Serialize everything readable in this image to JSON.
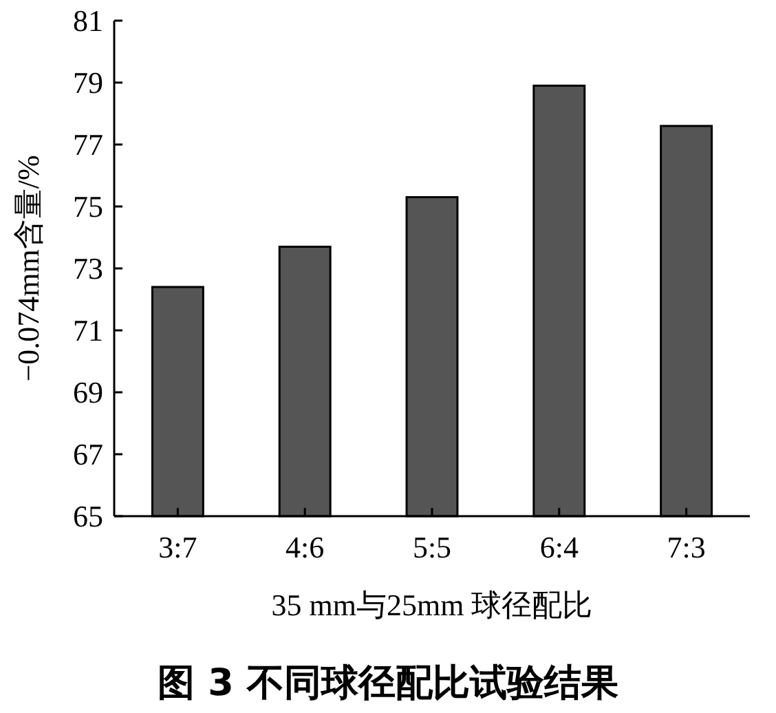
{
  "chart_data": {
    "type": "bar",
    "title": "图 3  不同球径配比试验结果",
    "xlabel": "35 mm与25mm 球径配比",
    "ylabel": "−0.074mm含量/%",
    "categories": [
      "3:7",
      "4:6",
      "5:5",
      "6:4",
      "7:3"
    ],
    "values": [
      72.4,
      73.7,
      75.3,
      78.9,
      77.6
    ],
    "color": "#555555",
    "ylim": [
      65,
      81
    ],
    "yticks": [
      65,
      67,
      69,
      71,
      73,
      75,
      77,
      79,
      81
    ],
    "grid": false
  }
}
